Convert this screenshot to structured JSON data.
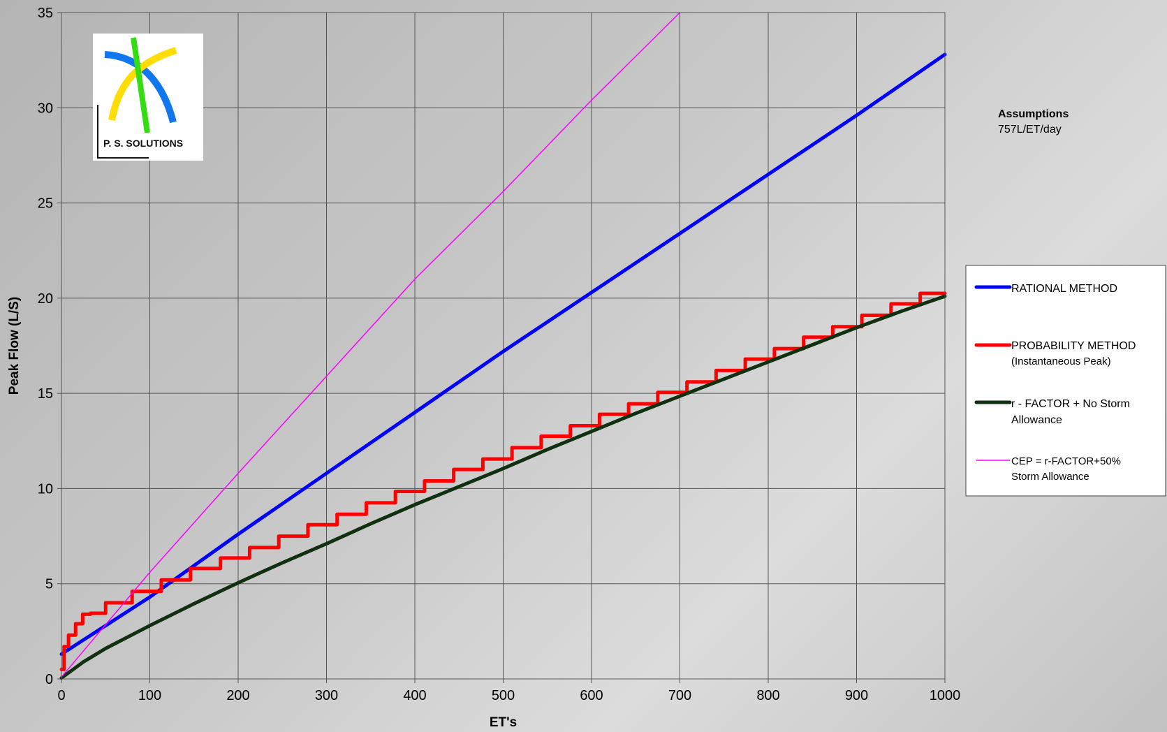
{
  "chart_data": {
    "type": "line",
    "xlabel": "ET's",
    "ylabel": "Peak Flow (L/S)",
    "xlim": [
      0,
      1000
    ],
    "ylim": [
      0,
      35
    ],
    "x_ticks": [
      0,
      100,
      200,
      300,
      400,
      500,
      600,
      700,
      800,
      900,
      1000
    ],
    "y_ticks": [
      0,
      5,
      10,
      15,
      20,
      25,
      30,
      35
    ],
    "grid": true,
    "legend_position": "right",
    "series": [
      {
        "name": "RATIONAL METHOD",
        "color": "#0000ff",
        "x": [
          0,
          100,
          200,
          300,
          400,
          500,
          600,
          700,
          800,
          900,
          1000
        ],
        "y": [
          1.3,
          4.3,
          7.6,
          10.8,
          14.0,
          17.2,
          20.3,
          23.4,
          26.5,
          29.6,
          32.8
        ]
      },
      {
        "name": "PROBABILITY METHOD",
        "name_line2": "(Instantaneous Peak)",
        "color": "#ff0000",
        "step": true,
        "x": [
          0,
          3,
          8,
          16,
          24,
          33,
          50,
          80,
          113,
          146,
          180,
          213,
          246,
          279,
          312,
          345,
          378,
          411,
          444,
          477,
          510,
          543,
          576,
          609,
          642,
          675,
          708,
          741,
          774,
          807,
          840,
          873,
          906,
          939,
          972,
          1000
        ],
        "y": [
          0.5,
          1.7,
          2.3,
          2.9,
          3.4,
          3.45,
          4.0,
          4.6,
          5.2,
          5.8,
          6.35,
          6.9,
          7.5,
          8.1,
          8.65,
          9.25,
          9.85,
          10.4,
          11.0,
          11.55,
          12.15,
          12.75,
          13.3,
          13.9,
          14.45,
          15.05,
          15.6,
          16.2,
          16.8,
          17.35,
          17.95,
          18.5,
          19.1,
          19.7,
          20.25,
          20.25
        ]
      },
      {
        "name": "r - FACTOR + No Storm",
        "name_line2": "Allowance",
        "color": "#103010",
        "x": [
          0,
          25,
          50,
          100,
          150,
          200,
          250,
          300,
          350,
          400,
          450,
          500,
          550,
          600,
          650,
          700,
          750,
          800,
          850,
          900,
          950,
          1000
        ],
        "y": [
          0.05,
          0.9,
          1.6,
          2.8,
          3.95,
          5.05,
          6.1,
          7.1,
          8.15,
          9.15,
          10.1,
          11.05,
          12.05,
          13.0,
          13.95,
          14.85,
          15.75,
          16.65,
          17.55,
          18.45,
          19.3,
          20.1
        ]
      },
      {
        "name": "CEP = r-FACTOR+50%",
        "name_line2": "Storm Allowance",
        "color": "#ff00ff",
        "thin": true,
        "x": [
          0,
          100,
          200,
          300,
          400,
          500,
          600,
          700
        ],
        "y": [
          0.1,
          5.6,
          10.8,
          15.9,
          21.0,
          25.6,
          30.4,
          35.0
        ]
      }
    ]
  },
  "logo": {
    "text": "P. S. SOLUTIONS",
    "colors": {
      "blue": "#1177ee",
      "yellow": "#ffdd00",
      "green": "#33dd11"
    }
  },
  "assumptions": {
    "title": "Assumptions",
    "text": "757L/ET/day"
  }
}
